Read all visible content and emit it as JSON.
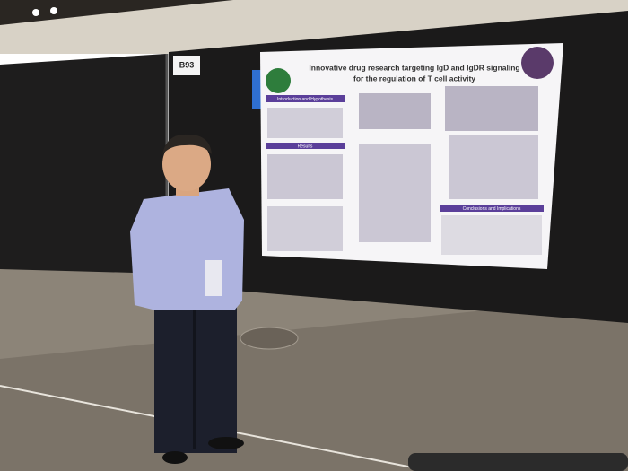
{
  "booth_label": "B93",
  "poster": {
    "title_lines": [
      "Innovative drug research targeting IgD and IgDR signaling",
      "for the regulation of T cell activity"
    ],
    "sections": [
      "Introduction and Hypothesis",
      "Results",
      "Conclusions and Implications"
    ]
  }
}
